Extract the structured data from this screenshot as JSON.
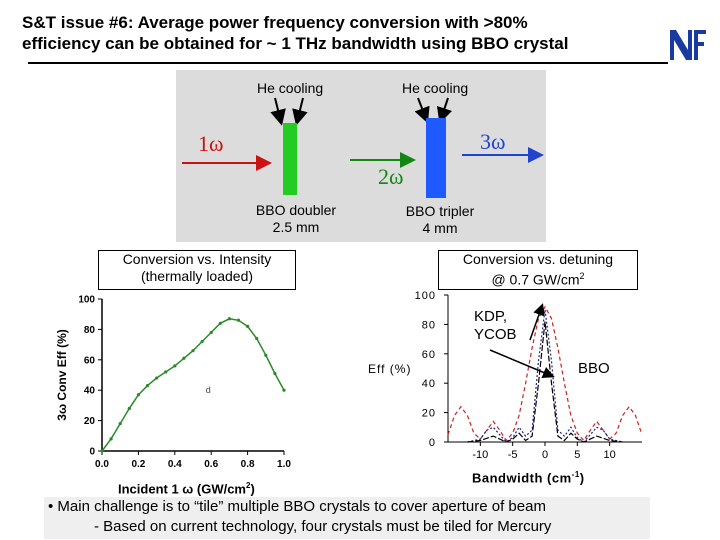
{
  "title": {
    "line1": "S&T issue #6: Average power frequency conversion with >80%",
    "line2": "efficiency can be obtained for ~ 1 THz bandwidth using BBO crystal"
  },
  "logo": {
    "icon": "nif-logo-icon",
    "color": "#1a3aa0"
  },
  "diagram": {
    "cooling_left": "He cooling",
    "cooling_right": "He cooling",
    "omega_1": "1ω",
    "omega_2": "2ω",
    "omega_3": "3ω",
    "doubler_name": "BBO doubler",
    "doubler_size": "2.5 mm",
    "tripler_name": "BBO tripler",
    "tripler_size": "4 mm",
    "colors": {
      "beam_1w": "#cc1111",
      "beam_2w": "#118811",
      "beam_3w": "#2244cc",
      "crystal_doubler": "#22cc22",
      "crystal_tripler": "#1e5aff",
      "panel": "#dcdcdc"
    }
  },
  "left_box": {
    "line1": "Conversion vs. Intensity",
    "line2": "(thermally loaded)"
  },
  "right_box": {
    "line1": "Conversion vs. detuning",
    "line2_prefix": "@ 0.7 GW/cm",
    "line2_sup": "2"
  },
  "annotations": {
    "kdp": "KDP,",
    "ycob": "YCOB",
    "bbo": "BBO"
  },
  "bullets": {
    "line1": "• Main challenge is to  “tile” multiple BBO crystals to cover aperture of beam",
    "line2": "- Based on current technology, four crystals must be tiled for Mercury"
  },
  "chart_data": [
    {
      "type": "line",
      "xlabel_prefix": "Incident 1 ω (GW/cm",
      "xlabel_sup": "2",
      "xlabel_suffix": ")",
      "ylabel": "3ω Conv Eff (%)",
      "xlim": [
        0.0,
        1.0
      ],
      "ylim": [
        0,
        100
      ],
      "x_ticks": [
        "0.0",
        "0.2",
        "0.4",
        "0.6",
        "0.8",
        "1.0"
      ],
      "y_ticks": [
        "0",
        "20",
        "40",
        "60",
        "80",
        "100"
      ],
      "inner_mark": "d",
      "series": [
        {
          "color": "#2a8a2a",
          "x": [
            0.0,
            0.05,
            0.1,
            0.15,
            0.2,
            0.25,
            0.3,
            0.35,
            0.4,
            0.45,
            0.5,
            0.55,
            0.6,
            0.65,
            0.7,
            0.75,
            0.8,
            0.85,
            0.9,
            0.95,
            1.0
          ],
          "y": [
            0,
            8,
            18,
            28,
            37,
            43,
            48,
            52,
            56,
            61,
            66,
            72,
            78,
            84,
            87,
            86,
            82,
            74,
            63,
            51,
            40
          ]
        }
      ]
    },
    {
      "type": "line",
      "xlabel": "Bandwidth (cm",
      "xlabel_sup": "-1",
      "xlabel_suffix": ")",
      "ylabel": "Eff (%)",
      "xlim": [
        -15,
        15
      ],
      "ylim": [
        0,
        100
      ],
      "x_ticks": [
        "-10",
        "-5",
        "0",
        "5",
        "10"
      ],
      "y_ticks": [
        "0",
        "20",
        "40",
        "60",
        "80",
        "100"
      ],
      "series": [
        {
          "color": "#cc2222",
          "x": [
            -15,
            -14,
            -13,
            -12,
            -11,
            -10,
            -9,
            -8,
            -7,
            -6,
            -5,
            -4,
            -3,
            -2,
            -1,
            0,
            1,
            2,
            3,
            4,
            5,
            6,
            7,
            8,
            9,
            10,
            11,
            12,
            13,
            14,
            15
          ],
          "y": [
            5,
            18,
            24,
            18,
            6,
            2,
            8,
            14,
            8,
            1,
            6,
            18,
            40,
            64,
            84,
            92,
            84,
            64,
            40,
            18,
            6,
            1,
            8,
            14,
            8,
            2,
            6,
            18,
            24,
            18,
            5
          ]
        },
        {
          "color": "#222288",
          "x": [
            -12,
            -10,
            -9,
            -8,
            -7,
            -6,
            -5,
            -4,
            -3,
            -2,
            -1,
            0,
            1,
            2,
            3,
            4,
            5,
            6,
            7,
            8,
            9,
            10,
            12
          ],
          "y": [
            0,
            2,
            8,
            10,
            5,
            0,
            3,
            10,
            4,
            8,
            55,
            90,
            55,
            8,
            4,
            10,
            3,
            0,
            5,
            10,
            8,
            2,
            0
          ]
        },
        {
          "color": "#000000",
          "x": [
            -12,
            -10,
            -8,
            -6,
            -5,
            -4,
            -3,
            -2,
            -1,
            0,
            1,
            2,
            3,
            4,
            5,
            6,
            8,
            10,
            12
          ],
          "y": [
            0,
            1,
            4,
            0,
            2,
            6,
            1,
            4,
            40,
            82,
            40,
            4,
            1,
            6,
            2,
            0,
            4,
            1,
            0
          ]
        }
      ]
    }
  ]
}
